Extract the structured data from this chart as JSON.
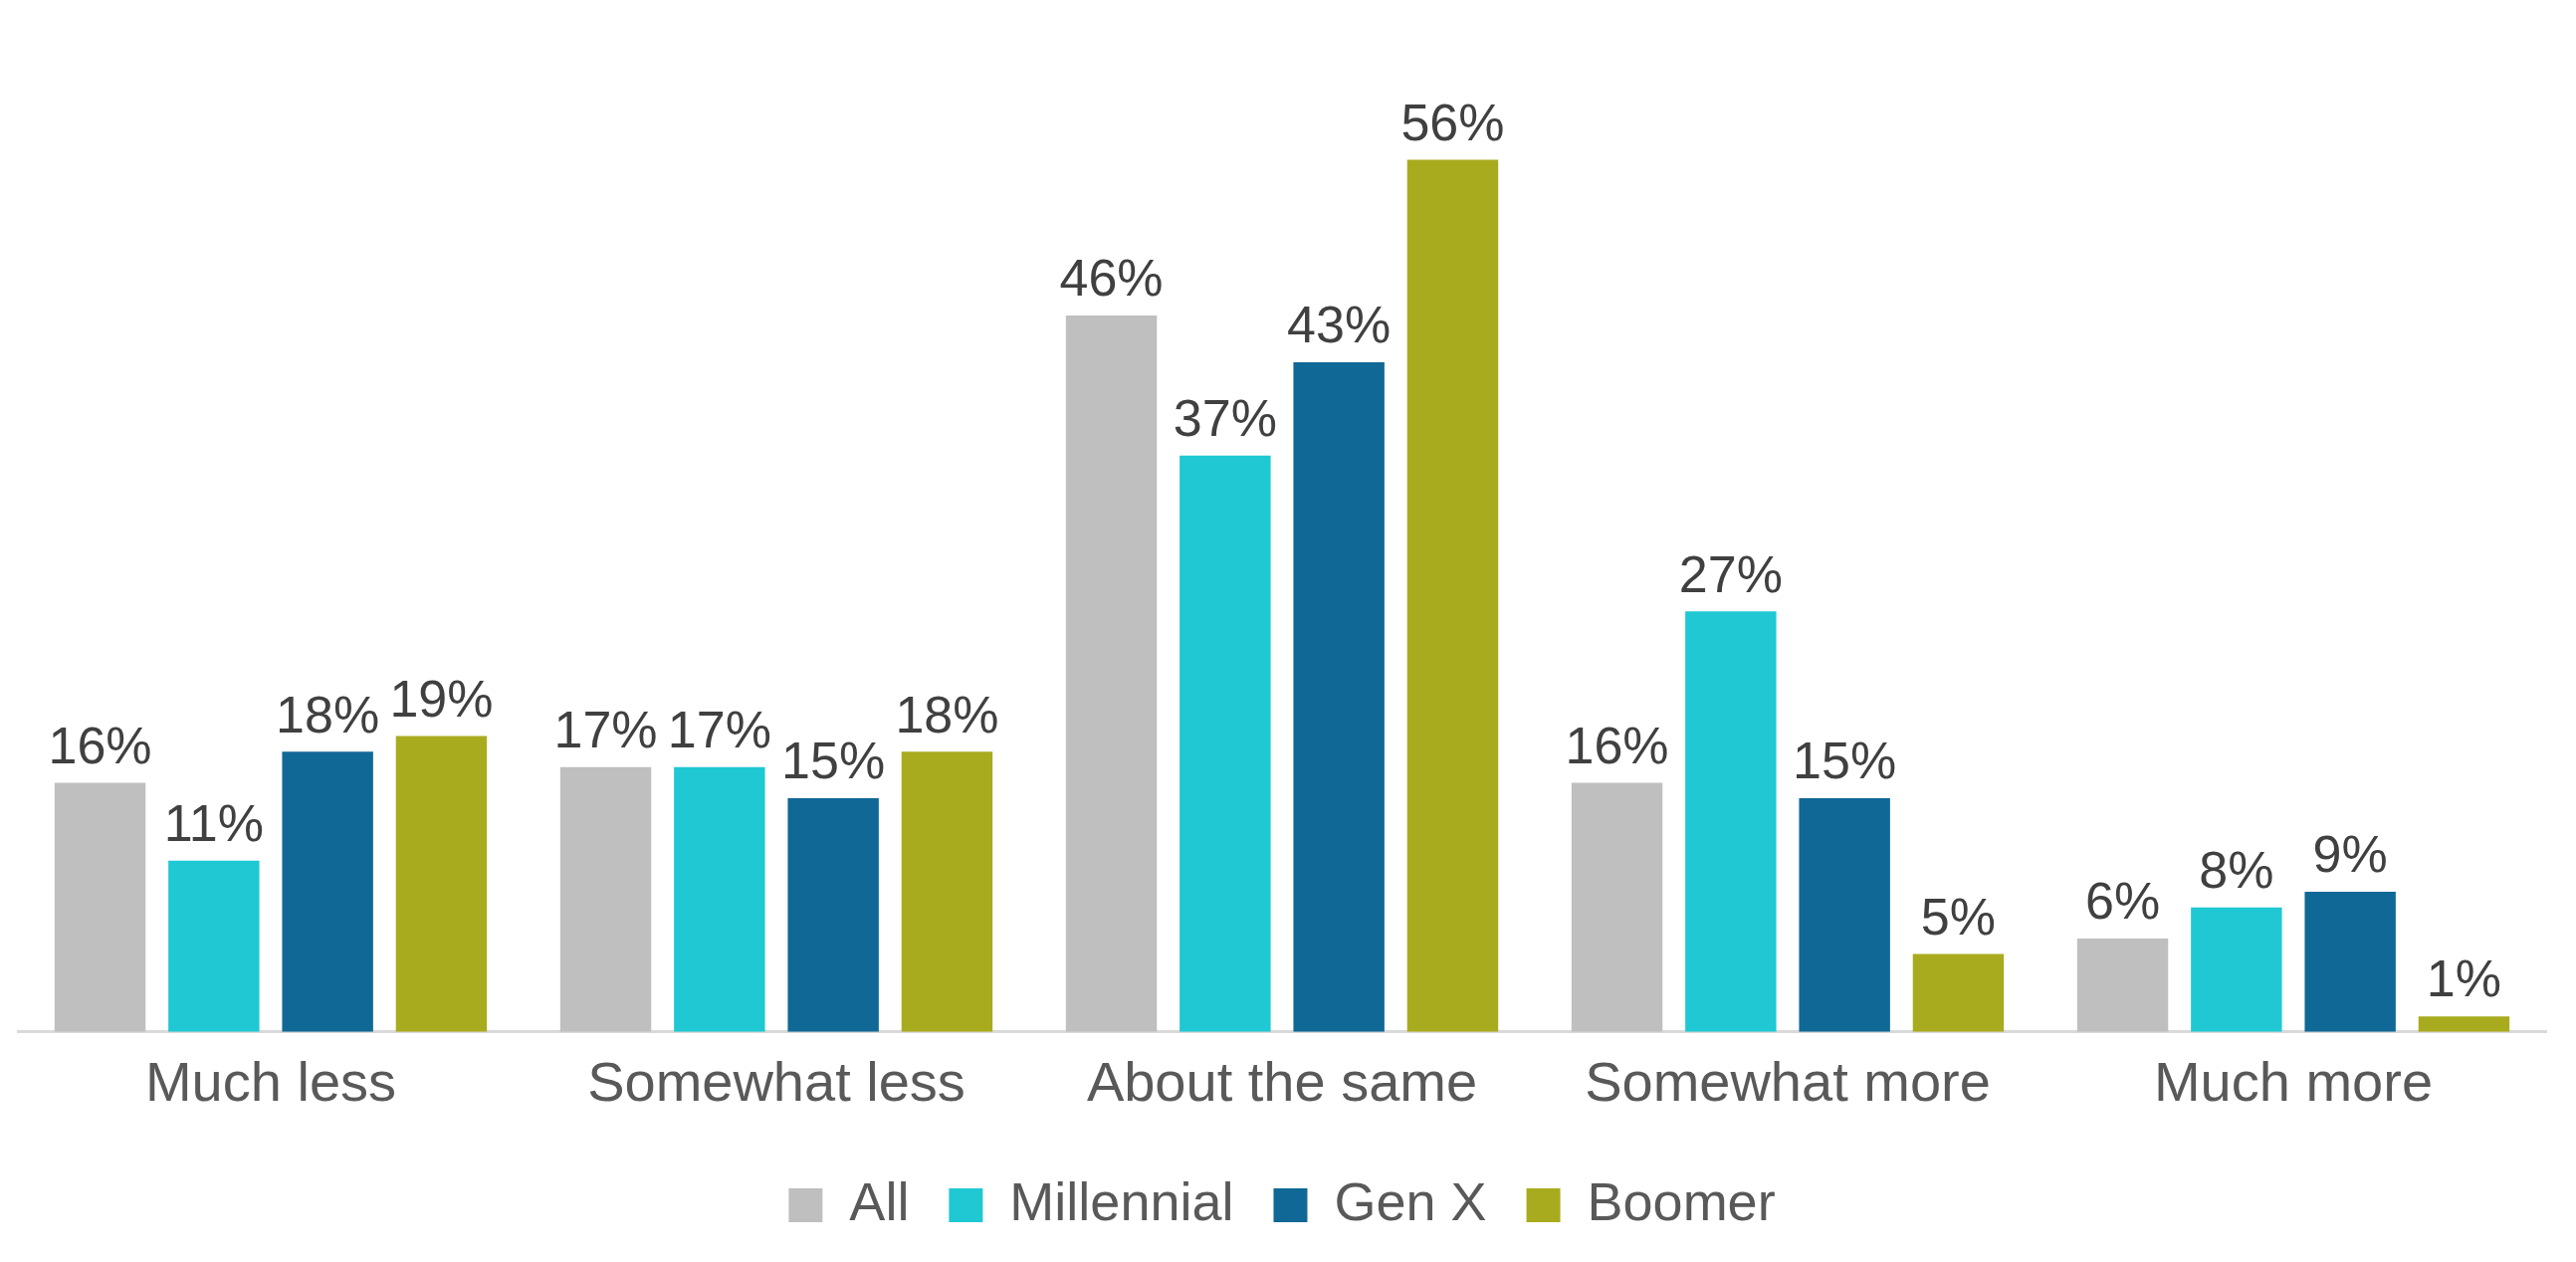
{
  "chart_data": {
    "type": "bar",
    "categories": [
      "Much less",
      "Somewhat less",
      "About the same",
      "Somewhat more",
      "Much more"
    ],
    "series": [
      {
        "name": "All",
        "color": "#bfbfbf",
        "values": [
          16,
          17,
          46,
          16,
          6
        ],
        "value_labels": [
          "16%",
          "17%",
          "46%",
          "16%",
          "6%"
        ]
      },
      {
        "name": "Millennial",
        "color": "#1fc8d3",
        "values": [
          11,
          17,
          37,
          27,
          8
        ],
        "value_labels": [
          "11%",
          "17%",
          "37%",
          "27%",
          "8%"
        ]
      },
      {
        "name": "Gen X",
        "color": "#106896",
        "values": [
          18,
          15,
          43,
          15,
          9
        ],
        "value_labels": [
          "18%",
          "15%",
          "43%",
          "15%",
          "9%"
        ]
      },
      {
        "name": "Boomer",
        "color": "#a9ab1f",
        "values": [
          19,
          18,
          56,
          5,
          1
        ],
        "value_labels": [
          "19%",
          "18%",
          "56%",
          "5%",
          "1%"
        ]
      }
    ],
    "tick_labels": "x",
    "grid": false,
    "legend": "bottom"
  }
}
